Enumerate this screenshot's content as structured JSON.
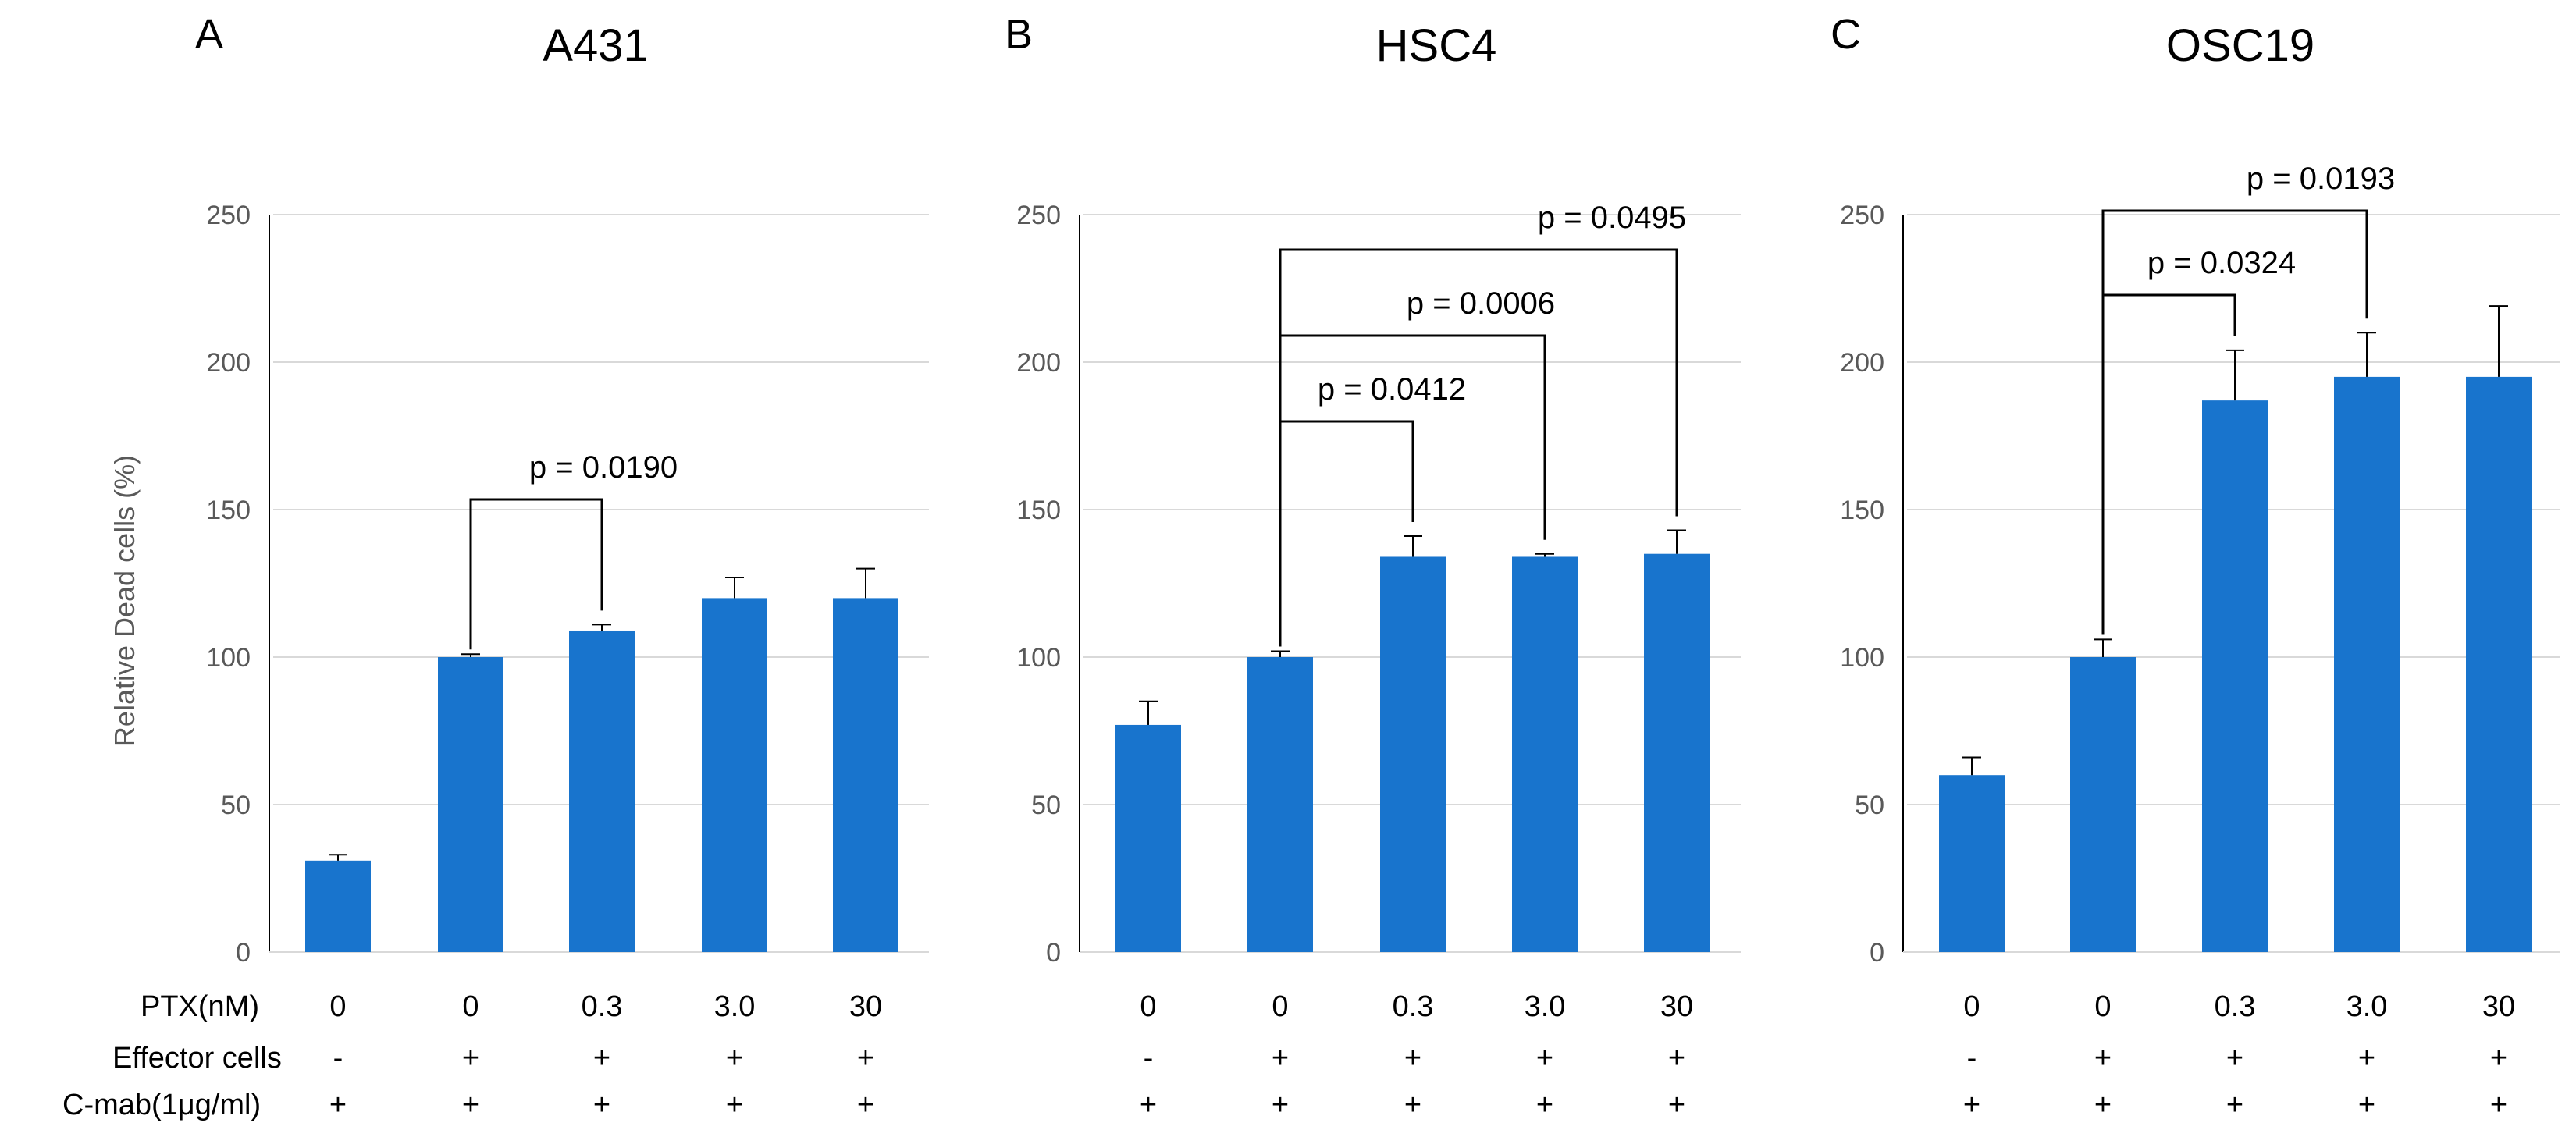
{
  "chart_data": [
    {
      "type": "bar",
      "panel_letter": "A",
      "title": "A431",
      "ylabel": "Relative  Dead cells (%)",
      "ylim": [
        0,
        250
      ],
      "yticks": [
        "0",
        "50",
        "100",
        "150",
        "200",
        "250"
      ],
      "categories": [
        "0",
        "0",
        "0.3",
        "3.0",
        "30"
      ],
      "values": [
        31,
        100,
        109,
        120,
        120
      ],
      "errors": [
        2,
        1,
        2,
        7,
        10
      ],
      "color": "#1874CD",
      "significance": [
        {
          "label": "p = 0.0190",
          "from": 1,
          "to": 2
        }
      ]
    },
    {
      "type": "bar",
      "panel_letter": "B",
      "title": "HSC4",
      "ylim": [
        0,
        250
      ],
      "yticks": [
        "0",
        "50",
        "100",
        "150",
        "200",
        "250"
      ],
      "categories": [
        "0",
        "0",
        "0.3",
        "3.0",
        "30"
      ],
      "values": [
        77,
        100,
        134,
        134,
        135
      ],
      "errors": [
        8,
        2,
        7,
        1,
        8
      ],
      "color": "#1874CD",
      "significance": [
        {
          "label": "p = 0.0412",
          "from": 1,
          "to": 2
        },
        {
          "label": "p =  0.0006",
          "from": 1,
          "to": 3
        },
        {
          "label": "p = 0.0495",
          "from": 1,
          "to": 4
        }
      ]
    },
    {
      "type": "bar",
      "panel_letter": "C",
      "title": "OSC19",
      "ylim": [
        0,
        250
      ],
      "yticks": [
        "0",
        "50",
        "100",
        "150",
        "200",
        "250"
      ],
      "categories": [
        "0",
        "0",
        "0.3",
        "3.0",
        "30"
      ],
      "values": [
        60,
        100,
        187,
        195,
        195
      ],
      "errors": [
        6,
        6,
        17,
        15,
        24
      ],
      "color": "#1874CD",
      "significance": [
        {
          "label": "p = 0.0324",
          "from": 1,
          "to": 2
        },
        {
          "label": "p =  0.0193",
          "from": 1,
          "to": 3
        }
      ]
    }
  ],
  "row_labels": [
    "PTX(nM)",
    "Effector cells",
    "C-mab(1μg/ml)"
  ],
  "effector_row": [
    "-",
    "+",
    "+",
    "+",
    "+"
  ],
  "cmab_row": [
    "+",
    "+",
    "+",
    "+",
    "+"
  ]
}
